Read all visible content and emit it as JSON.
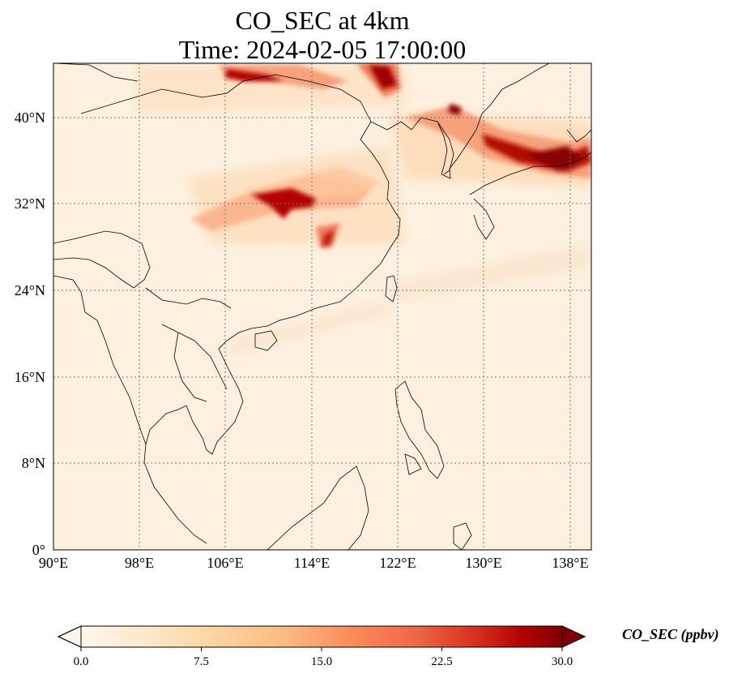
{
  "title": {
    "line1": "CO_SEC at 4km",
    "line2": "Time: 2024-02-05 17:00:00"
  },
  "axes": {
    "lon_ticks": [
      "90°E",
      "98°E",
      "106°E",
      "114°E",
      "122°E",
      "130°E",
      "138°E"
    ],
    "lat_ticks": [
      "40°N",
      "32°N",
      "24°N",
      "16°N",
      "8°N",
      "0°"
    ],
    "lon_range": [
      90,
      140
    ],
    "lat_range": [
      0,
      45
    ],
    "gridlines": "dotted"
  },
  "colorbar": {
    "label": "CO_SEC (ppbv)",
    "ticks": [
      "0.0",
      "7.5",
      "15.0",
      "22.5",
      "30.0"
    ],
    "min": 0.0,
    "max": 30.0,
    "colormap": "OrRd",
    "extend": "both",
    "colors": [
      "#fff7ec",
      "#fee8c8",
      "#fdd49e",
      "#fdbb84",
      "#fc8d59",
      "#ef6548",
      "#d7301f",
      "#b30000",
      "#7f0000"
    ]
  },
  "map": {
    "projection": "PlateCarree",
    "features": [
      "coastlines",
      "country borders"
    ],
    "background_color": "#fdf0df"
  }
}
